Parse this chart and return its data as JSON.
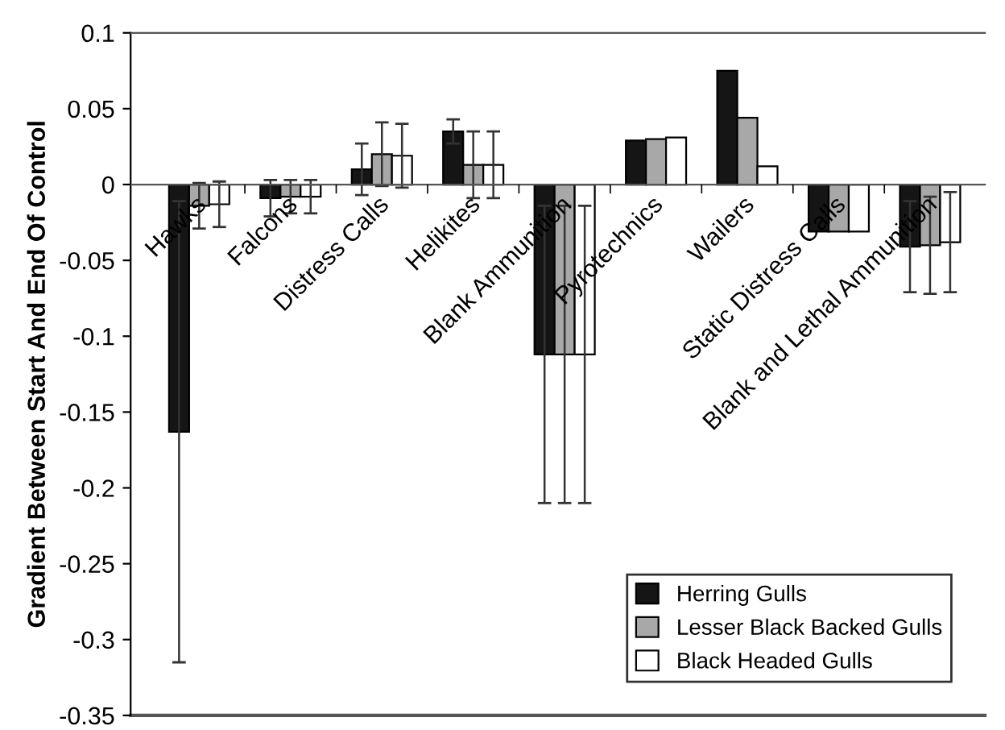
{
  "chart_data": {
    "type": "bar",
    "ylabel": "Gradient Between Start And End Of Control",
    "categories": [
      "Hawks",
      "Falcons",
      "Distress Calls",
      "Helikites",
      "Blank Ammunition",
      "Pyrotechnics",
      "Wailers",
      "Static Distress Calls",
      "Blank and Lethal Ammunition"
    ],
    "series": [
      {
        "name": "Herring Gulls",
        "color": "#151515",
        "values": [
          -0.163,
          -0.009,
          0.01,
          0.035,
          -0.112,
          0.029,
          0.075,
          -0.031,
          -0.041
        ],
        "errors": [
          0.152,
          0.012,
          0.017,
          0.008,
          0.098,
          null,
          null,
          null,
          0.03
        ]
      },
      {
        "name": "Lesser Black Backed Gulls",
        "color": "#a8a8a8",
        "values": [
          -0.014,
          -0.008,
          0.02,
          0.013,
          -0.112,
          0.03,
          0.044,
          -0.031,
          -0.04
        ],
        "errors": [
          0.015,
          0.011,
          0.021,
          0.022,
          0.098,
          null,
          null,
          null,
          0.032
        ]
      },
      {
        "name": "Black Headed Gulls",
        "color": "#ffffff",
        "values": [
          -0.013,
          -0.008,
          0.019,
          0.013,
          -0.112,
          0.031,
          0.012,
          -0.031,
          -0.038
        ],
        "errors": [
          0.015,
          0.011,
          0.021,
          0.022,
          0.098,
          null,
          null,
          null,
          0.033
        ]
      }
    ],
    "ylim": [
      -0.35,
      0.1
    ],
    "yticks": [
      -0.35,
      -0.3,
      -0.25,
      -0.2,
      -0.15,
      -0.1,
      -0.05,
      0,
      0.05,
      0.1
    ],
    "grid": false,
    "legend": "bottom right"
  }
}
